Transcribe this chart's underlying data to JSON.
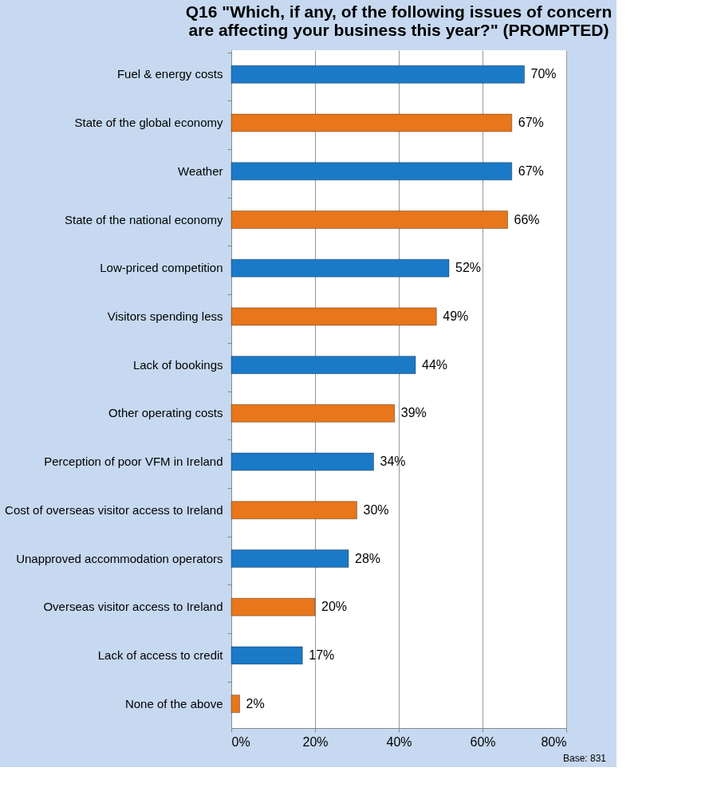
{
  "chart_data": {
    "type": "bar",
    "orientation": "horizontal",
    "title": "Q16 \"Which, if any, of the following issues of concern\nare affecting your business this year?\" (PROMPTED)",
    "categories": [
      "Fuel & energy costs",
      "State of the global economy",
      "Weather",
      "State of the national  economy",
      "Low-priced competition",
      "Visitors spending less",
      "Lack of bookings",
      "Other operating costs",
      "Perception of poor VFM in Ireland",
      "Cost of overseas visitor access to Ireland",
      "Unapproved accommodation  operators",
      "Overseas visitor access to Ireland",
      "Lack of access to credit",
      "None of the above"
    ],
    "values": [
      70,
      67,
      67,
      66,
      52,
      49,
      44,
      39,
      34,
      30,
      28,
      20,
      17,
      2
    ],
    "value_labels": [
      "70%",
      "67%",
      "67%",
      "66%",
      "52%",
      "49%",
      "44%",
      "39%",
      "34%",
      "30%",
      "28%",
      "20%",
      "17%",
      "2%"
    ],
    "colors": [
      "#1a7ac8",
      "#e8761a",
      "#1a7ac8",
      "#e8761a",
      "#1a7ac8",
      "#e8761a",
      "#1a7ac8",
      "#e8761a",
      "#1a7ac8",
      "#e8761a",
      "#1a7ac8",
      "#e8761a",
      "#1a7ac8",
      "#e8761a"
    ],
    "xlim": [
      0,
      80
    ],
    "xticks": [
      {
        "value": 0,
        "label": "0%"
      },
      {
        "value": 20,
        "label": "20%"
      },
      {
        "value": 40,
        "label": "40%"
      },
      {
        "value": 60,
        "label": "60%"
      },
      {
        "value": 80,
        "label": "80%"
      }
    ],
    "grid": "x",
    "annotations": [
      "Base: 831"
    ]
  }
}
